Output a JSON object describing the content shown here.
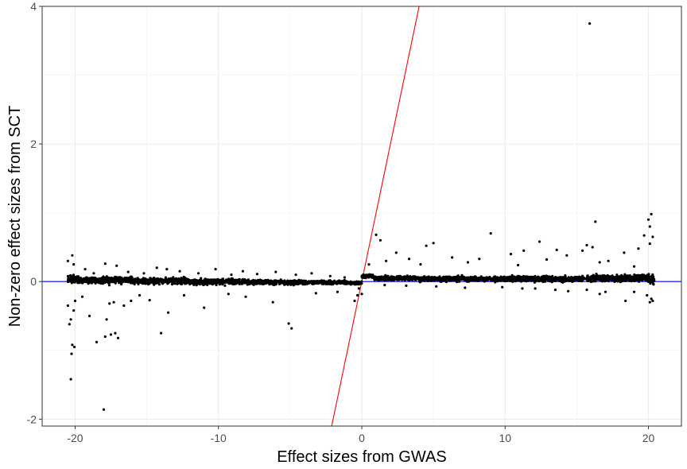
{
  "chart_data": {
    "type": "scatter",
    "title": "",
    "xlabel": "Effect sizes from GWAS",
    "ylabel": "Non-zero effect sizes from SCT",
    "xlim": [
      -22.3,
      22.3
    ],
    "ylim": [
      -2.1,
      4.0
    ],
    "x_ticks": [
      -20,
      -10,
      0,
      10,
      20
    ],
    "x_tick_labels": [
      "-20",
      "-10",
      "0",
      "10",
      "20"
    ],
    "y_ticks": [
      -2,
      0,
      2,
      4
    ],
    "y_tick_labels": [
      "-2",
      "0",
      "2",
      "4"
    ],
    "grid": true,
    "legend": "none",
    "reference_lines": [
      {
        "kind": "horizontal",
        "y": 0,
        "color": "#0000ff"
      },
      {
        "kind": "abline",
        "slope": 1,
        "intercept": 0,
        "color": "#ff0000"
      }
    ],
    "series": [
      {
        "color": "#000000",
        "points": [
          [
            15.9,
            3.75
          ],
          [
            20.2,
            0.98
          ],
          [
            20.0,
            0.9
          ],
          [
            16.3,
            0.87
          ],
          [
            20.1,
            0.8
          ],
          [
            9.0,
            0.7
          ],
          [
            1.0,
            0.68
          ],
          [
            19.7,
            0.67
          ],
          [
            20.3,
            0.65
          ],
          [
            1.3,
            0.6
          ],
          [
            5.0,
            0.56
          ],
          [
            12.4,
            0.58
          ],
          [
            4.5,
            0.52
          ],
          [
            15.7,
            0.53
          ],
          [
            16.1,
            0.5
          ],
          [
            20.1,
            0.55
          ],
          [
            19.3,
            0.48
          ],
          [
            13.6,
            0.46
          ],
          [
            11.3,
            0.45
          ],
          [
            15.4,
            0.45
          ],
          [
            2.4,
            0.42
          ],
          [
            18.3,
            0.42
          ],
          [
            10.4,
            0.4
          ],
          [
            14.3,
            0.38
          ],
          [
            6.3,
            0.35
          ],
          [
            3.3,
            0.33
          ],
          [
            8.2,
            0.33
          ],
          [
            12.9,
            0.32
          ],
          [
            17.2,
            0.3
          ],
          [
            1.7,
            0.3
          ],
          [
            7.4,
            0.28
          ],
          [
            16.6,
            0.28
          ],
          [
            0.5,
            0.25
          ],
          [
            4.1,
            0.25
          ],
          [
            10.9,
            0.24
          ],
          [
            19.0,
            0.22
          ],
          [
            -20.2,
            0.38
          ],
          [
            -20.5,
            0.3
          ],
          [
            -20.1,
            0.25
          ],
          [
            -17.9,
            0.26
          ],
          [
            -17.1,
            0.23
          ],
          [
            -19.3,
            0.18
          ],
          [
            -14.3,
            0.2
          ],
          [
            -13.6,
            0.18
          ],
          [
            -10.2,
            0.18
          ],
          [
            -8.3,
            0.15
          ],
          [
            -12.7,
            0.15
          ],
          [
            -6.0,
            0.14
          ],
          [
            -3.5,
            0.12
          ],
          [
            -16.3,
            0.14
          ],
          [
            -15.2,
            0.12
          ],
          [
            -11.4,
            0.12
          ],
          [
            -7.3,
            0.11
          ],
          [
            -4.6,
            0.1
          ],
          [
            -2.2,
            0.08
          ],
          [
            -1.2,
            0.06
          ],
          [
            -18.7,
            0.12
          ],
          [
            -9.1,
            0.1
          ],
          [
            -20.3,
            -0.55
          ],
          [
            -20.4,
            -0.62
          ],
          [
            -20.1,
            -0.42
          ],
          [
            -20.5,
            -0.35
          ],
          [
            -20.0,
            -0.28
          ],
          [
            -20.2,
            -0.92
          ],
          [
            -20.05,
            -0.95
          ],
          [
            -20.25,
            -1.05
          ],
          [
            -20.3,
            -1.42
          ],
          [
            -18.0,
            -1.86
          ],
          [
            -17.9,
            -0.8
          ],
          [
            -17.5,
            -0.77
          ],
          [
            -17.2,
            -0.75
          ],
          [
            -18.5,
            -0.88
          ],
          [
            -17.0,
            -0.82
          ],
          [
            -19.0,
            -0.5
          ],
          [
            -17.6,
            -0.32
          ],
          [
            -17.3,
            -0.3
          ],
          [
            -16.6,
            -0.35
          ],
          [
            -17.8,
            -0.55
          ],
          [
            -14.0,
            -0.75
          ],
          [
            -16.1,
            -0.28
          ],
          [
            -13.5,
            -0.45
          ],
          [
            -12.4,
            -0.2
          ],
          [
            -9.3,
            -0.18
          ],
          [
            -8.1,
            -0.22
          ],
          [
            -5.1,
            -0.61
          ],
          [
            -4.9,
            -0.68
          ],
          [
            -11.0,
            -0.38
          ],
          [
            -6.2,
            -0.3
          ],
          [
            -3.2,
            -0.17
          ],
          [
            -14.8,
            -0.27
          ],
          [
            -15.5,
            -0.2
          ],
          [
            -19.5,
            -0.22
          ],
          [
            -1.7,
            -0.15
          ],
          [
            -0.5,
            -0.28
          ],
          [
            -0.3,
            -0.2
          ],
          [
            -0.2,
            -0.1
          ],
          [
            0.0,
            -0.18
          ],
          [
            20.2,
            -0.25
          ],
          [
            20.1,
            -0.3
          ],
          [
            20.3,
            -0.28
          ],
          [
            19.9,
            -0.2
          ],
          [
            18.4,
            -0.28
          ],
          [
            17.0,
            -0.15
          ],
          [
            15.7,
            -0.12
          ],
          [
            14.4,
            -0.14
          ],
          [
            12.1,
            -0.1
          ],
          [
            9.8,
            -0.08
          ],
          [
            7.2,
            -0.09
          ],
          [
            5.2,
            -0.07
          ],
          [
            3.1,
            -0.06
          ],
          [
            1.6,
            -0.05
          ],
          [
            11.2,
            -0.1
          ],
          [
            13.5,
            -0.12
          ],
          [
            16.6,
            -0.18
          ],
          [
            19.0,
            -0.15
          ]
        ],
        "band_segments": [
          [
            -20.5,
            -19.5,
            0.03,
            0.12
          ],
          [
            -19.5,
            -16.0,
            0.02,
            0.1
          ],
          [
            -16.0,
            -12.0,
            0.01,
            0.09
          ],
          [
            -12.0,
            -8.0,
            0.0,
            0.08
          ],
          [
            -8.0,
            -4.0,
            -0.01,
            0.07
          ],
          [
            -4.0,
            -1.0,
            -0.01,
            0.05
          ],
          [
            -1.0,
            0.0,
            -0.02,
            0.04
          ],
          [
            0.0,
            0.8,
            0.08,
            0.05
          ],
          [
            0.8,
            4.0,
            0.05,
            0.06
          ],
          [
            4.0,
            10.0,
            0.04,
            0.07
          ],
          [
            10.0,
            16.0,
            0.04,
            0.08
          ],
          [
            16.0,
            19.8,
            0.05,
            0.09
          ],
          [
            19.8,
            20.4,
            0.04,
            0.15
          ]
        ]
      }
    ]
  }
}
